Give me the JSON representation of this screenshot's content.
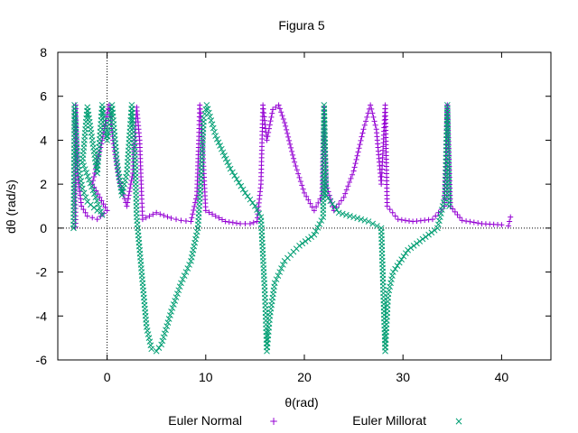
{
  "chart_data": {
    "type": "scatter",
    "title": "Figura 5",
    "xlabel": "θ(rad)",
    "ylabel": "dθ (rad/s)",
    "xlim": [
      -5,
      45
    ],
    "ylim": [
      -6,
      8
    ],
    "xticks": [
      0,
      10,
      20,
      30,
      40
    ],
    "yticks": [
      -6,
      -4,
      -2,
      0,
      2,
      4,
      6,
      8
    ],
    "zero_axes": true,
    "grid": false,
    "legend_position": "bottom",
    "series": [
      {
        "name": "Euler Normal",
        "marker": "+",
        "color": "#9400d3",
        "points": [
          [
            -3.2,
            0.05
          ],
          [
            -3.2,
            5.6
          ],
          [
            -3.0,
            2.5
          ],
          [
            -2.6,
            1.0
          ],
          [
            -2.0,
            0.55
          ],
          [
            -1.0,
            0.4
          ],
          [
            0,
            0.8
          ],
          [
            -1.5,
            2.0
          ],
          [
            -0.5,
            4.0
          ],
          [
            0.2,
            5.6
          ],
          [
            0.6,
            4.0
          ],
          [
            1.2,
            2.2
          ],
          [
            2.0,
            1.0
          ],
          [
            2.6,
            2.5
          ],
          [
            3.0,
            5.5
          ],
          [
            3.3,
            4.0
          ],
          [
            3.5,
            1.5
          ],
          [
            3.6,
            0.4
          ],
          [
            5.0,
            0.7
          ],
          [
            6.5,
            0.45
          ],
          [
            7.5,
            0.35
          ],
          [
            8.5,
            0.3
          ],
          [
            9.1,
            1.5
          ],
          [
            9.3,
            4.0
          ],
          [
            9.4,
            5.6
          ],
          [
            9.6,
            4.5
          ],
          [
            10.0,
            0.8
          ],
          [
            12.0,
            0.3
          ],
          [
            13.5,
            0.2
          ],
          [
            14.5,
            0.2
          ],
          [
            15.2,
            0.3
          ],
          [
            15.6,
            2.0
          ],
          [
            15.8,
            5.6
          ],
          [
            16.2,
            4.0
          ],
          [
            16.8,
            5.4
          ],
          [
            17.4,
            5.6
          ],
          [
            18.0,
            4.8
          ],
          [
            19.0,
            3.0
          ],
          [
            20.0,
            1.6
          ],
          [
            21.0,
            0.8
          ],
          [
            21.8,
            1.5
          ],
          [
            22.0,
            5.5
          ],
          [
            22.2,
            2.0
          ],
          [
            23.0,
            0.8
          ],
          [
            24.0,
            1.4
          ],
          [
            25.0,
            2.6
          ],
          [
            26.0,
            4.5
          ],
          [
            26.7,
            5.6
          ],
          [
            27.3,
            4.5
          ],
          [
            27.8,
            2.0
          ],
          [
            28.2,
            5.6
          ],
          [
            28.4,
            1.0
          ],
          [
            29.5,
            0.4
          ],
          [
            31.0,
            0.3
          ],
          [
            33.0,
            0.4
          ],
          [
            34.2,
            1.0
          ],
          [
            34.5,
            5.6
          ],
          [
            34.8,
            1.0
          ],
          [
            36.0,
            0.35
          ],
          [
            38.0,
            0.2
          ],
          [
            40.0,
            0.15
          ],
          [
            40.7,
            0.1
          ],
          [
            40.9,
            0.5
          ]
        ]
      },
      {
        "name": "Euler Millorat",
        "marker": "×",
        "color": "#009e73",
        "points": [
          [
            -3.4,
            0.0
          ],
          [
            -3.3,
            5.6
          ],
          [
            -3.0,
            3.0
          ],
          [
            -2.5,
            1.8
          ],
          [
            -2.0,
            1.2
          ],
          [
            -1.0,
            0.8
          ],
          [
            -0.5,
            0.6
          ],
          [
            -2.5,
            3.0
          ],
          [
            -2.0,
            5.5
          ],
          [
            -1.5,
            4.0
          ],
          [
            -1.0,
            2.5
          ],
          [
            -0.5,
            5.6
          ],
          [
            0.0,
            4.0
          ],
          [
            0.5,
            5.6
          ],
          [
            1.0,
            3.0
          ],
          [
            1.5,
            1.5
          ],
          [
            2.0,
            2.5
          ],
          [
            2.5,
            5.6
          ],
          [
            2.8,
            3.5
          ],
          [
            3.0,
            0.5
          ],
          [
            3.1,
            0.0
          ],
          [
            3.5,
            -2.0
          ],
          [
            4.0,
            -4.5
          ],
          [
            4.5,
            -5.5
          ],
          [
            5.0,
            -5.6
          ],
          [
            5.5,
            -5.3
          ],
          [
            6.5,
            -3.8
          ],
          [
            7.5,
            -2.5
          ],
          [
            8.5,
            -1.5
          ],
          [
            9.2,
            0.0
          ],
          [
            9.5,
            2.0
          ],
          [
            9.8,
            5.0
          ],
          [
            10.1,
            5.6
          ],
          [
            11.0,
            4.2
          ],
          [
            12.5,
            2.7
          ],
          [
            14.0,
            1.6
          ],
          [
            15.0,
            1.0
          ],
          [
            15.6,
            0.5
          ],
          [
            16.0,
            -3.0
          ],
          [
            16.2,
            -5.6
          ],
          [
            16.5,
            -4.0
          ],
          [
            17.0,
            -2.5
          ],
          [
            18.0,
            -1.5
          ],
          [
            19.5,
            -0.8
          ],
          [
            21.0,
            -0.3
          ],
          [
            21.9,
            0.5
          ],
          [
            22.0,
            5.6
          ],
          [
            22.2,
            1.5
          ],
          [
            23.5,
            0.7
          ],
          [
            25.0,
            0.5
          ],
          [
            26.5,
            0.3
          ],
          [
            27.8,
            0.0
          ],
          [
            28.2,
            -5.6
          ],
          [
            28.5,
            -3.0
          ],
          [
            29.0,
            -2.0
          ],
          [
            30.5,
            -1.0
          ],
          [
            32.0,
            -0.5
          ],
          [
            33.5,
            0.0
          ],
          [
            34.3,
            1.5
          ],
          [
            34.5,
            5.6
          ],
          [
            34.7,
            1.0
          ]
        ]
      }
    ]
  }
}
